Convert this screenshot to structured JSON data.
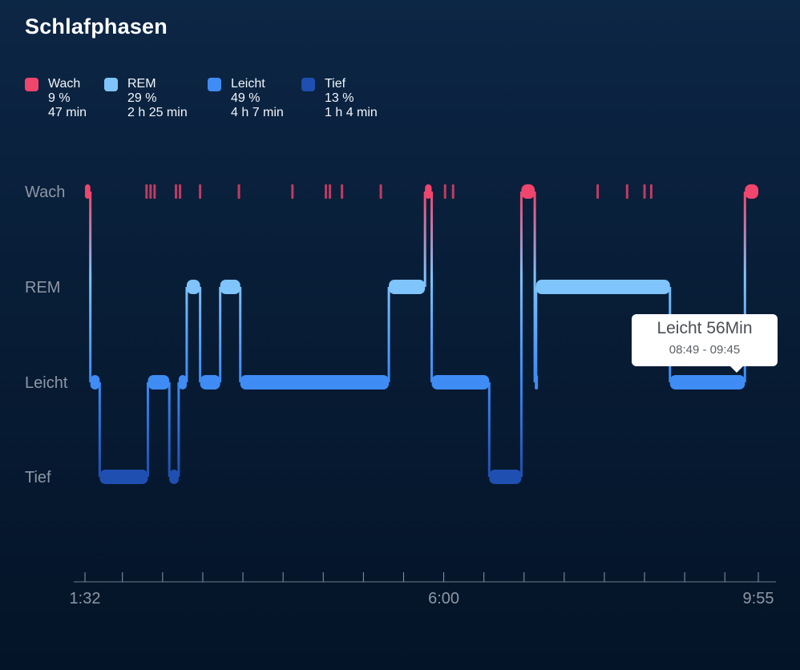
{
  "title": "Schlafphasen",
  "legend": [
    {
      "name": "Wach",
      "percent": "9 %",
      "duration": "47 min",
      "color": "#f0456c"
    },
    {
      "name": "REM",
      "percent": "29 %",
      "duration": "2 h 25 min",
      "color": "#7fc4fb"
    },
    {
      "name": "Leicht",
      "percent": "49 %",
      "duration": "4 h 7 min",
      "color": "#3f8cf4"
    },
    {
      "name": "Tief",
      "percent": "13 %",
      "duration": "1 h 4 min",
      "color": "#1f4fb0"
    }
  ],
  "tooltip": {
    "title": "Leicht 56Min",
    "time": "08:49 - 09:45"
  },
  "chart_data": {
    "type": "step",
    "y_levels": [
      "Wach",
      "REM",
      "Leicht",
      "Tief"
    ],
    "x_tick_labels": [
      "1:32",
      "6:00",
      "9:55"
    ],
    "x_range_minutes": [
      92,
      595
    ],
    "segments": [
      {
        "stage": "Wach",
        "start": 92,
        "end": 96
      },
      {
        "stage": "Leicht",
        "start": 96,
        "end": 103
      },
      {
        "stage": "Tief",
        "start": 103,
        "end": 139
      },
      {
        "stage": "Leicht",
        "start": 139,
        "end": 155
      },
      {
        "stage": "Tief",
        "start": 155,
        "end": 162
      },
      {
        "stage": "Leicht",
        "start": 162,
        "end": 168
      },
      {
        "stage": "REM",
        "start": 168,
        "end": 178
      },
      {
        "stage": "Leicht",
        "start": 178,
        "end": 193
      },
      {
        "stage": "REM",
        "start": 193,
        "end": 208
      },
      {
        "stage": "Leicht",
        "start": 208,
        "end": 319
      },
      {
        "stage": "REM",
        "start": 319,
        "end": 346
      },
      {
        "stage": "Wach",
        "start": 346,
        "end": 351
      },
      {
        "stage": "Leicht",
        "start": 351,
        "end": 394
      },
      {
        "stage": "Tief",
        "start": 394,
        "end": 418
      },
      {
        "stage": "Wach",
        "start": 418,
        "end": 428
      },
      {
        "stage": "Leicht",
        "start": 428,
        "end": 429
      },
      {
        "stage": "REM",
        "start": 429,
        "end": 529
      },
      {
        "stage": "Leicht",
        "start": 529,
        "end": 585
      },
      {
        "stage": "Wach",
        "start": 585,
        "end": 595
      }
    ],
    "wake_ticks_minutes": [
      138,
      141,
      144,
      160,
      163,
      178,
      207,
      247,
      272,
      275,
      284,
      313,
      361,
      367,
      475,
      497,
      510,
      515
    ]
  }
}
